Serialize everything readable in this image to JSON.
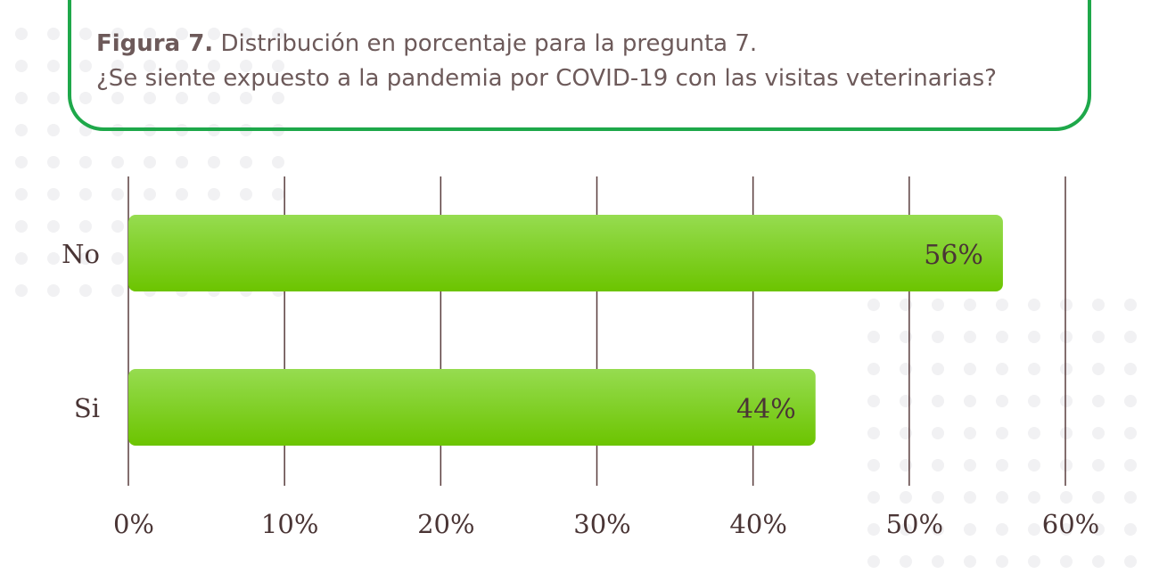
{
  "caption": {
    "figure_label": "Figura 7.",
    "title": "Distribución en porcentaje para la pregunta 7.",
    "question": "¿Se siente expuesto a la pandemia por COVID-19 con las visitas veterinarias?"
  },
  "colors": {
    "bar_top": "#96dc50",
    "bar_bottom": "#6cc400",
    "frame": "#1ea84a",
    "gridline": "#5a3e3e",
    "text": "#6d5a5a",
    "dots": "#f1f1f3"
  },
  "chart_data": {
    "type": "bar",
    "orientation": "horizontal",
    "categories": [
      "No",
      "Si"
    ],
    "values": [
      56,
      44
    ],
    "value_labels": [
      "56%",
      "44%"
    ],
    "xlim": [
      0,
      60
    ],
    "xticks": [
      0,
      10,
      20,
      30,
      40,
      50,
      60
    ],
    "xtick_labels": [
      "0%",
      "10%",
      "20%",
      "30%",
      "40%",
      "50%",
      "60%"
    ],
    "grid": true,
    "legend": "none"
  }
}
